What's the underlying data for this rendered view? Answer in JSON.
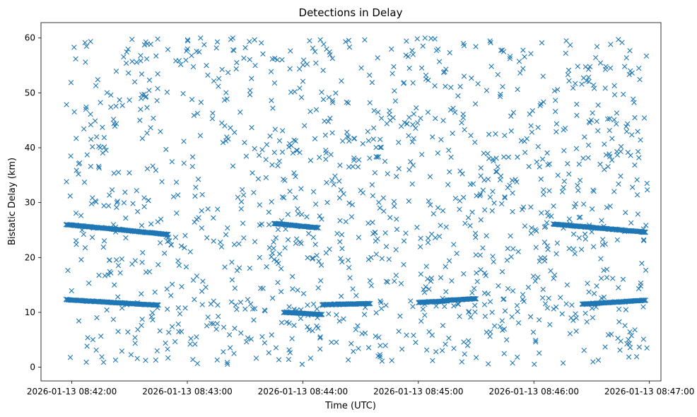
{
  "chart_data": {
    "type": "scatter",
    "title": "Detections in Delay",
    "xlabel": "Time (UTC)",
    "ylabel": "Bistatic Delay (km)",
    "marker": "x",
    "marker_color": "#1f77b4",
    "grid": false,
    "x_axis": {
      "type": "time",
      "min": "2026-01-13 08:41:44",
      "max": "2026-01-13 08:47:06",
      "ticks": [
        "2026-01-13 08:42:00",
        "2026-01-13 08:43:00",
        "2026-01-13 08:44:00",
        "2026-01-13 08:45:00",
        "2026-01-13 08:46:00",
        "2026-01-13 08:47:00"
      ]
    },
    "y_axis": {
      "min": -2.5,
      "max": 62.8,
      "ticks": [
        0,
        10,
        20,
        30,
        40,
        50,
        60
      ]
    },
    "tracks": [
      {
        "time_start": "2026-01-13 08:41:57",
        "time_end": "2026-01-13 08:42:45",
        "delay_start": 12.3,
        "delay_end": 11.3
      },
      {
        "time_start": "2026-01-13 08:41:57",
        "time_end": "2026-01-13 08:42:50",
        "delay_start": 26.0,
        "delay_end": 24.2
      },
      {
        "time_start": "2026-01-13 08:43:45",
        "time_end": "2026-01-13 08:44:08",
        "delay_start": 26.2,
        "delay_end": 25.4
      },
      {
        "time_start": "2026-01-13 08:43:50",
        "time_end": "2026-01-13 08:44:10",
        "delay_start": 10.0,
        "delay_end": 9.6
      },
      {
        "time_start": "2026-01-13 08:44:10",
        "time_end": "2026-01-13 08:44:35",
        "delay_start": 11.4,
        "delay_end": 11.6
      },
      {
        "time_start": "2026-01-13 08:45:00",
        "time_end": "2026-01-13 08:45:15",
        "delay_start": 11.8,
        "delay_end": 12.1
      },
      {
        "time_start": "2026-01-13 08:45:15",
        "time_end": "2026-01-13 08:45:30",
        "delay_start": 12.2,
        "delay_end": 12.5
      },
      {
        "time_start": "2026-01-13 08:46:10",
        "time_end": "2026-01-13 08:46:58",
        "delay_start": 26.1,
        "delay_end": 24.6
      },
      {
        "time_start": "2026-01-13 08:46:25",
        "time_end": "2026-01-13 08:46:58",
        "delay_start": 11.5,
        "delay_end": 12.2
      }
    ],
    "noise_detections": {
      "time_range": [
        "2026-01-13 08:41:57",
        "2026-01-13 08:46:59"
      ],
      "delay_range": [
        0.5,
        60.0
      ],
      "count": 1300
    }
  }
}
